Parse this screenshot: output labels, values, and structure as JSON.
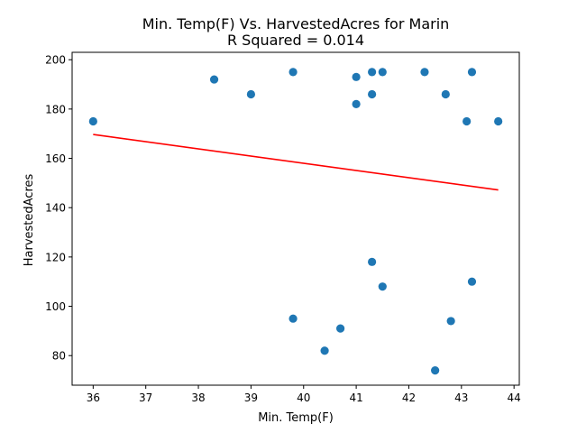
{
  "chart_data": {
    "type": "scatter",
    "title": "Min. Temp(F) Vs. HarvestedAcres for Marin",
    "subtitle": "R Squared =  0.014",
    "xlabel": "Min. Temp(F)",
    "ylabel": "HarvestedAcres",
    "xlim": [
      35.6,
      44.1
    ],
    "ylim": [
      68,
      203
    ],
    "xticks": [
      36,
      37,
      38,
      39,
      40,
      41,
      42,
      43,
      44
    ],
    "yticks": [
      80,
      100,
      120,
      140,
      160,
      180,
      200
    ],
    "grid": false,
    "colors": {
      "points": "#1f77b4",
      "regression": "#ff0000"
    },
    "points": [
      {
        "x": 36.0,
        "y": 175
      },
      {
        "x": 38.3,
        "y": 192
      },
      {
        "x": 39.0,
        "y": 186
      },
      {
        "x": 39.8,
        "y": 195
      },
      {
        "x": 39.8,
        "y": 95
      },
      {
        "x": 40.4,
        "y": 82
      },
      {
        "x": 40.7,
        "y": 91
      },
      {
        "x": 41.0,
        "y": 193
      },
      {
        "x": 41.0,
        "y": 182
      },
      {
        "x": 41.3,
        "y": 195
      },
      {
        "x": 41.3,
        "y": 186
      },
      {
        "x": 41.3,
        "y": 118
      },
      {
        "x": 41.5,
        "y": 195
      },
      {
        "x": 41.5,
        "y": 108
      },
      {
        "x": 42.3,
        "y": 195
      },
      {
        "x": 42.5,
        "y": 74
      },
      {
        "x": 42.7,
        "y": 186
      },
      {
        "x": 42.8,
        "y": 94
      },
      {
        "x": 43.1,
        "y": 175
      },
      {
        "x": 43.2,
        "y": 195
      },
      {
        "x": 43.2,
        "y": 110
      },
      {
        "x": 43.7,
        "y": 175
      }
    ],
    "regression_line": {
      "x": [
        36.0,
        43.7
      ],
      "y": [
        169.7,
        147.2
      ]
    }
  }
}
